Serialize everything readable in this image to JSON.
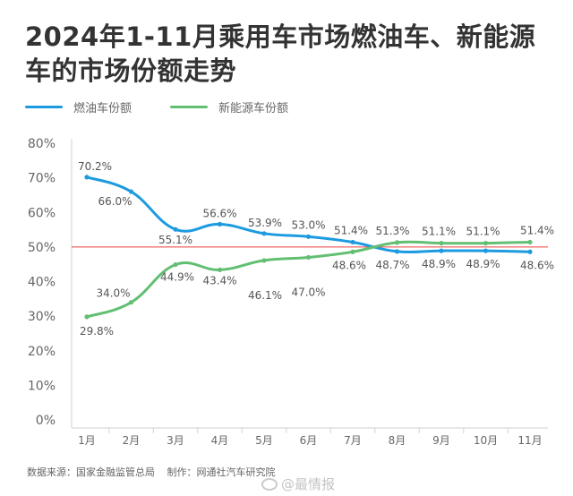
{
  "footer": {
    "source": "数据来源：国家金融监管总局",
    "maker": "制作：网通社汽车研究院"
  },
  "watermark": "@最情报",
  "chart_data": {
    "type": "line",
    "title_lines": [
      "2024年1-11月乘用车市场燃油车、新能源",
      "车的市场份额走势"
    ],
    "xlabel": "",
    "ylabel": "",
    "categories": [
      "1月",
      "2月",
      "3月",
      "4月",
      "5月",
      "6月",
      "7月",
      "8月",
      "9月",
      "10月",
      "11月"
    ],
    "series": [
      {
        "name": "燃油车份额",
        "color": "#1d9be0",
        "values": [
          70.2,
          66.0,
          55.1,
          56.6,
          53.9,
          53.0,
          51.4,
          48.7,
          48.9,
          48.9,
          48.6
        ]
      },
      {
        "name": "新能源车份额",
        "color": "#62bf72",
        "values": [
          29.8,
          34.0,
          44.9,
          43.4,
          46.1,
          47.0,
          48.6,
          51.3,
          51.1,
          51.1,
          51.4
        ]
      }
    ],
    "ylim": [
      0,
      80
    ],
    "y_tick_labels": [
      "0%",
      "10%",
      "20%",
      "30%",
      "40%",
      "50%",
      "60%",
      "70%",
      "80%"
    ],
    "value_suffix": "%",
    "reference_line": {
      "value": 50,
      "color": "#e8413c"
    },
    "grid": false,
    "legend_position": "top-left"
  }
}
